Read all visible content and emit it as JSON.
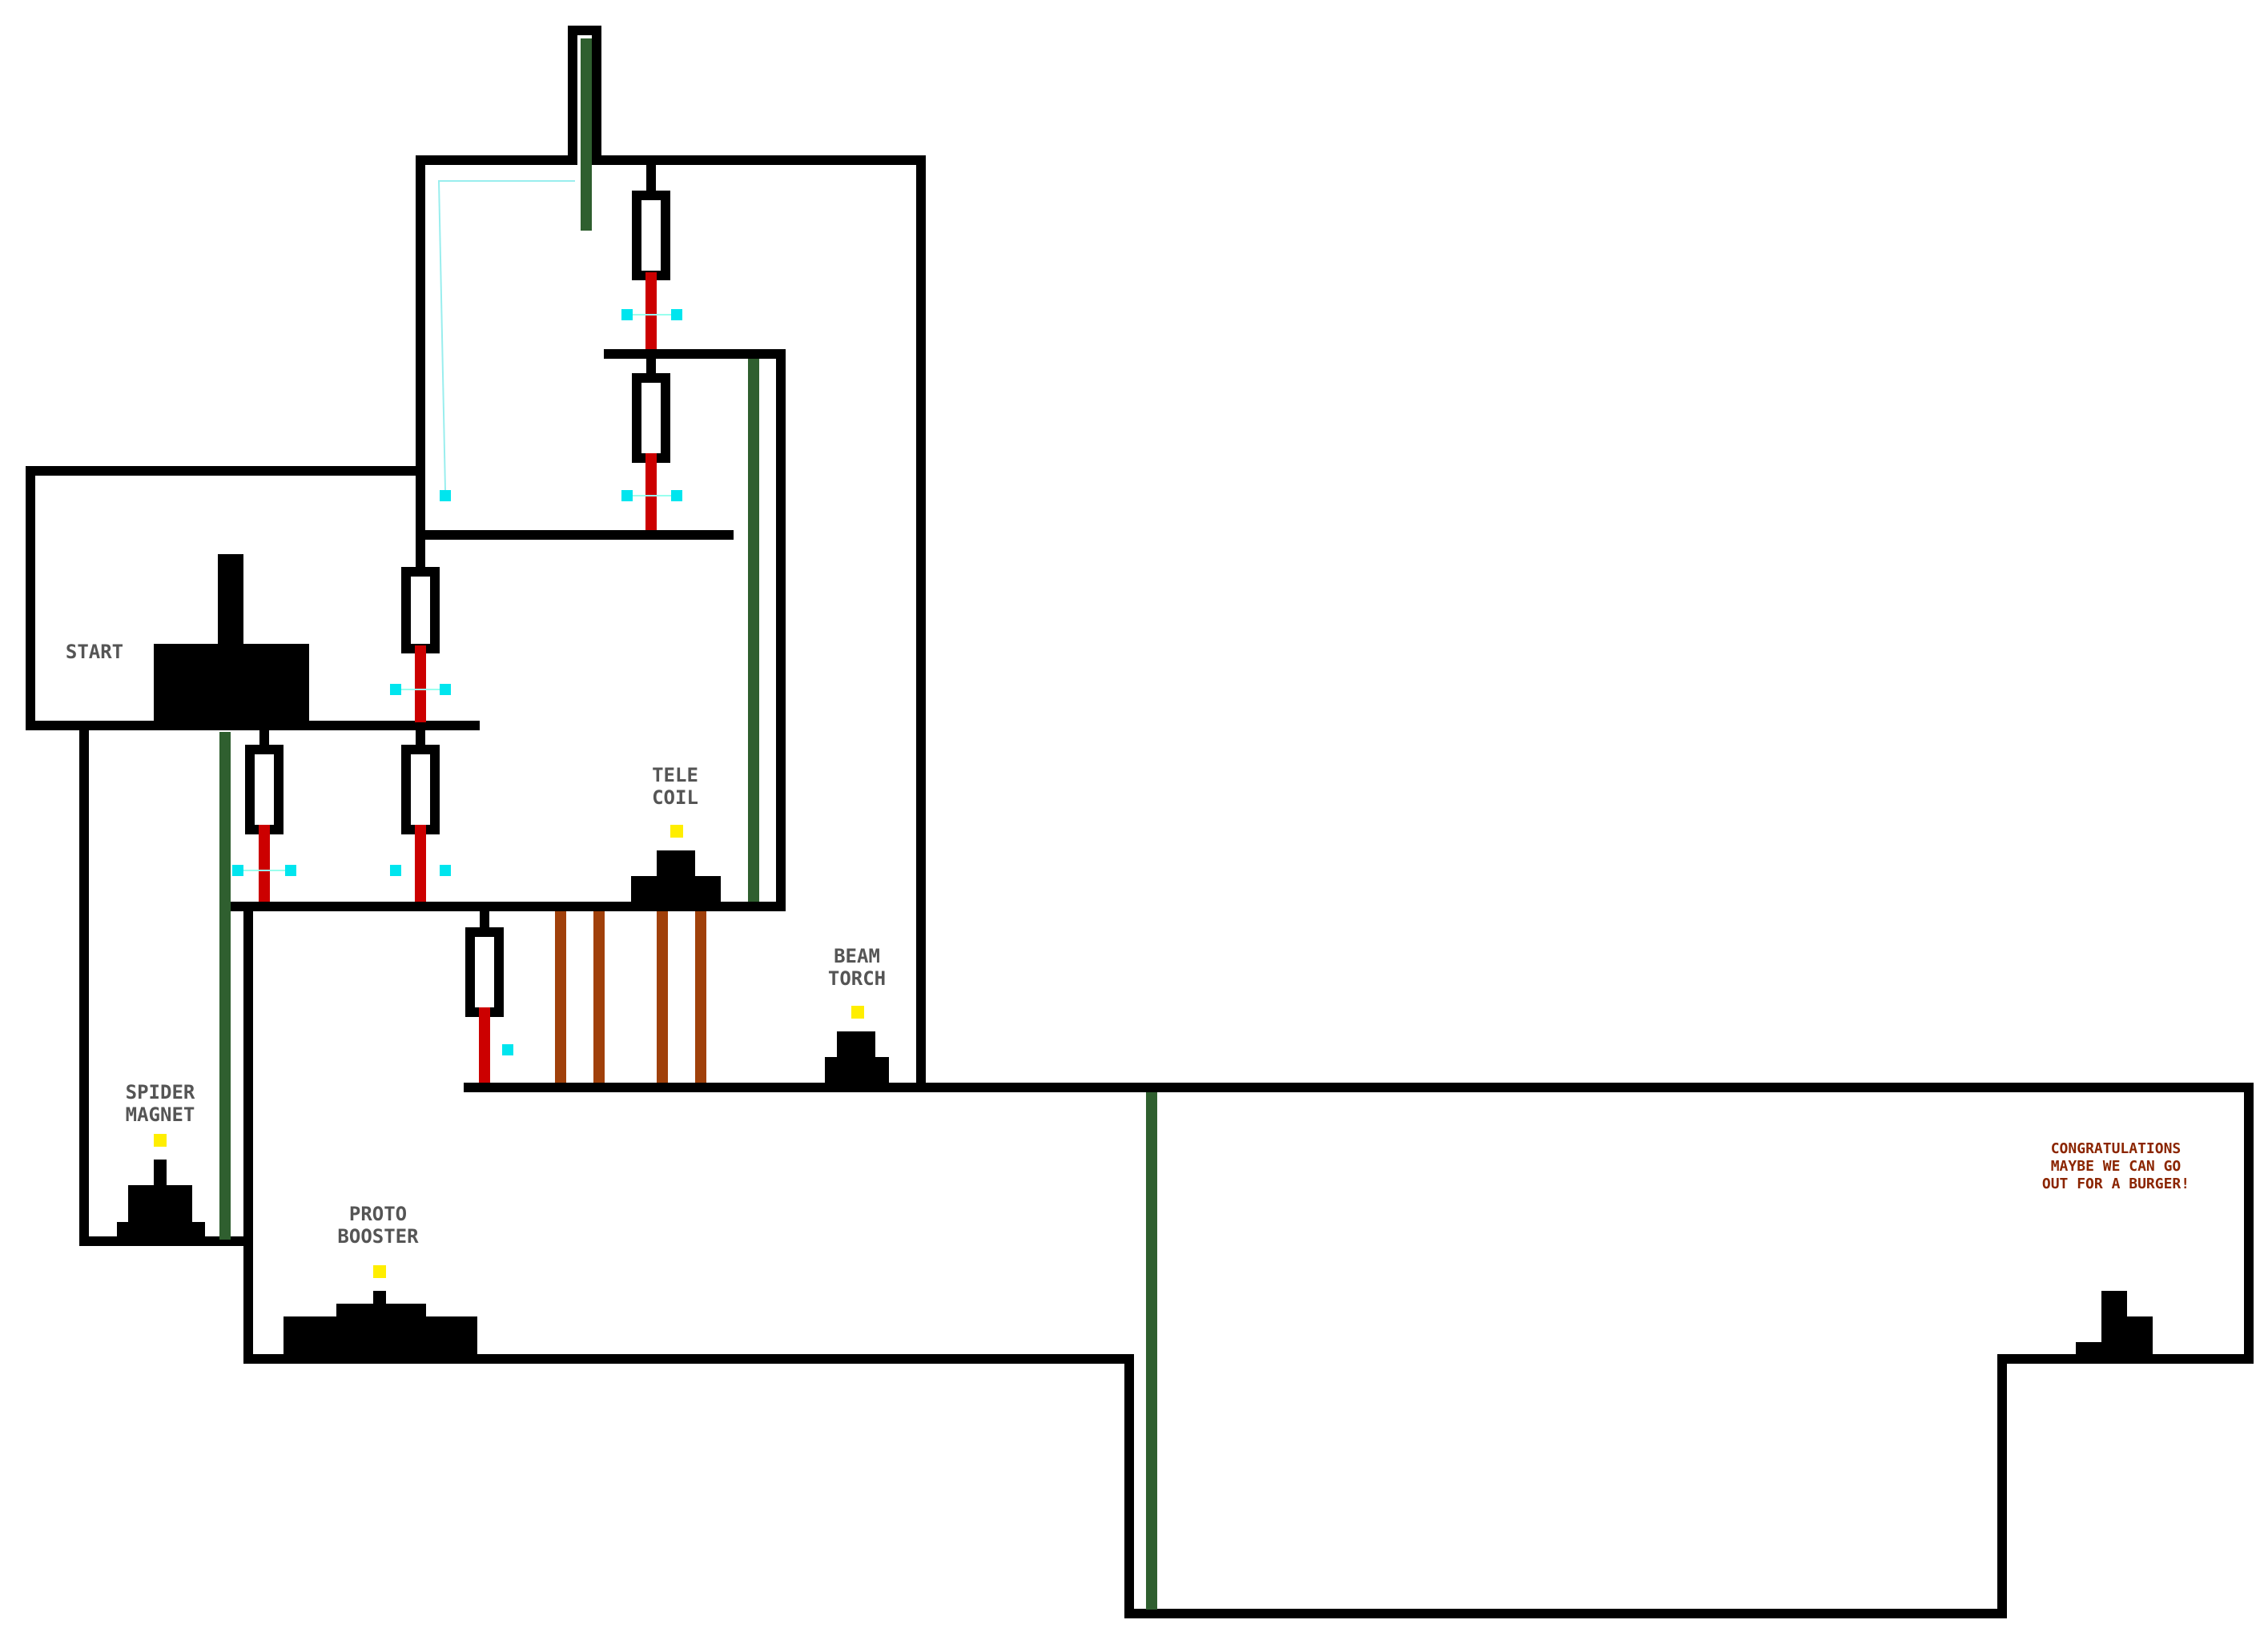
{
  "labels": {
    "start": "START",
    "tele_coil": [
      "TELE",
      "COIL"
    ],
    "beam_torch": [
      "BEAM",
      "TORCH"
    ],
    "spider_magnet": [
      "SPIDER",
      "MAGNET"
    ],
    "proto_booster": [
      "PROTO",
      "BOOSTER"
    ],
    "congratulations": [
      "CONGRATULATIONS",
      "MAYBE WE CAN GO",
      "OUT FOR A BURGER!"
    ]
  },
  "colors": {
    "wall": "#000000",
    "label": "#555555",
    "congrats": "#8b2500",
    "door_bar": "#cc0000",
    "elevator": "#2f5f2f",
    "force_field": "#a0400a",
    "sensor": "#00e5ee",
    "item_marker": "#ffee00",
    "background": "#ffffff"
  }
}
